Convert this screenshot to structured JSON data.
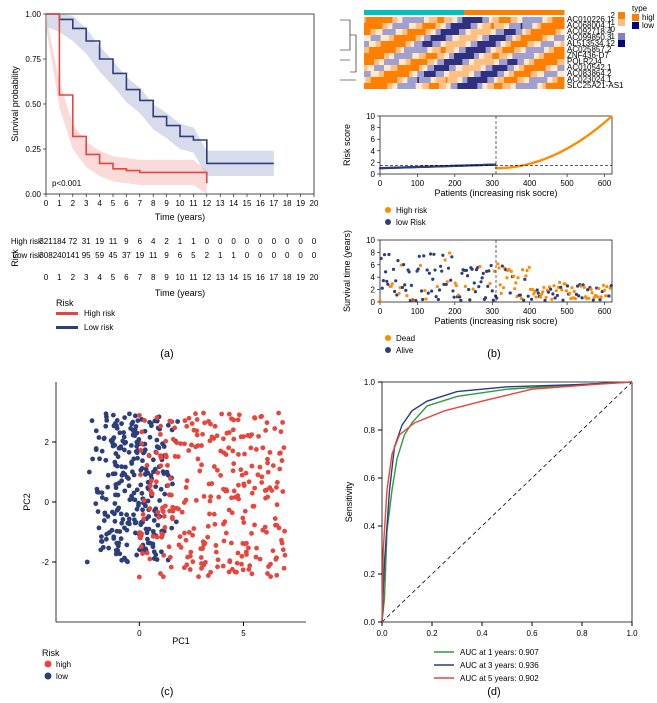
{
  "panel_a": {
    "km": {
      "ylabel": "Survival probability",
      "xlabel": "Time (years)",
      "pval": "p<0.001",
      "xlim": [
        0,
        20
      ],
      "ylim": [
        0,
        1.0
      ],
      "xticks": [
        0,
        1,
        2,
        3,
        4,
        5,
        6,
        7,
        8,
        9,
        10,
        11,
        12,
        13,
        14,
        15,
        16,
        17,
        18,
        19,
        20
      ],
      "yticks": [
        0.0,
        0.25,
        0.5,
        0.75,
        1.0
      ],
      "high_color": "#e8453c",
      "low_color": "#2c3e7c",
      "high_band_color": "#f4a6a0",
      "low_band_color": "#9aa5d0",
      "high_curve": [
        [
          0,
          1.0
        ],
        [
          1,
          0.55
        ],
        [
          2,
          0.32
        ],
        [
          3,
          0.22
        ],
        [
          4,
          0.17
        ],
        [
          5,
          0.14
        ],
        [
          6,
          0.13
        ],
        [
          7,
          0.12
        ],
        [
          8,
          0.12
        ],
        [
          9,
          0.12
        ],
        [
          10,
          0.12
        ],
        [
          11,
          0.12
        ],
        [
          12,
          0.06
        ]
      ],
      "low_curve": [
        [
          0,
          1.0
        ],
        [
          1,
          0.97
        ],
        [
          2,
          0.92
        ],
        [
          3,
          0.85
        ],
        [
          4,
          0.75
        ],
        [
          5,
          0.67
        ],
        [
          6,
          0.58
        ],
        [
          7,
          0.52
        ],
        [
          8,
          0.43
        ],
        [
          9,
          0.38
        ],
        [
          10,
          0.32
        ],
        [
          11,
          0.3
        ],
        [
          12,
          0.17
        ],
        [
          17,
          0.17
        ]
      ]
    },
    "risk_table": {
      "label": "Risk",
      "rows": [
        {
          "name": "High risk",
          "color": "#e8453c",
          "vals": [
            321,
            184,
            72,
            31,
            19,
            11,
            9,
            6,
            4,
            2,
            1,
            1,
            0,
            0,
            0,
            0,
            0,
            0,
            0,
            0,
            0
          ]
        },
        {
          "name": "Low risk",
          "color": "#2c3e7c",
          "vals": [
            308,
            240,
            141,
            95,
            59,
            45,
            37,
            19,
            11,
            9,
            6,
            5,
            2,
            1,
            1,
            0,
            0,
            0,
            0,
            0,
            0
          ]
        }
      ],
      "xlabel": "Time (years)"
    },
    "legend": {
      "title": "Risk",
      "items": [
        {
          "label": "High risk",
          "color": "#e8453c"
        },
        {
          "label": "Low risk",
          "color": "#2c3e7c"
        }
      ]
    },
    "caption": "(a)"
  },
  "panel_b": {
    "heatmap": {
      "genes": [
        "AC010226.1",
        "AC068004.1",
        "AC092718.4",
        "AC099850.3",
        "AL513534.1",
        "AC025857.2",
        "ZNF436-D7",
        "POLR2J4",
        "AC010542.1",
        "AC083864.2",
        "AC023024.1",
        "SLC25A21-AS1"
      ],
      "legend_left": {
        "title": "",
        "vals": [
          2,
          1,
          0,
          -1,
          -2
        ],
        "colors": [
          "#ff7f00",
          "#ffbf80",
          "#ffffff",
          "#8080c0",
          "#000080"
        ]
      },
      "legend_right": {
        "title": "type",
        "items": [
          {
            "label": "high",
            "color": "#ff7f00"
          },
          {
            "label": "low",
            "color": "#000080"
          }
        ]
      },
      "bar_color_high": "#00c0c0",
      "bar_color_low": "#ff7f00"
    },
    "risk_score": {
      "ylabel": "Risk score",
      "xlabel": "Patients (increasing risk socre)",
      "xlim": [
        0,
        620
      ],
      "ylim": [
        0,
        10
      ],
      "xticks": [
        0,
        100,
        200,
        300,
        400,
        500,
        600
      ],
      "yticks": [
        0,
        2,
        4,
        6,
        8,
        10
      ],
      "split": 310,
      "low_color": "#2c3e7c",
      "high_color": "#ff8c00",
      "legend": [
        {
          "label": "High risk",
          "color": "#ff8c00"
        },
        {
          "label": "low Risk",
          "color": "#2c3e7c"
        }
      ]
    },
    "survival_scatter": {
      "ylabel": "Survival time (years)",
      "xlabel": "Patients (increasing risk socre)",
      "xlim": [
        0,
        620
      ],
      "ylim": [
        0,
        10
      ],
      "xticks": [
        0,
        100,
        200,
        300,
        400,
        500,
        600
      ],
      "yticks": [
        0,
        2,
        4,
        6,
        8,
        10
      ],
      "split": 310,
      "dead_color": "#ff8c00",
      "alive_color": "#2c3e7c",
      "legend": [
        {
          "label": "Dead",
          "color": "#ff8c00"
        },
        {
          "label": "Alive",
          "color": "#2c3e7c"
        }
      ]
    },
    "caption": "(b)"
  },
  "panel_c": {
    "xlabel": "PC1",
    "ylabel": "PC2",
    "xlim": [
      -4,
      8
    ],
    "ylim": [
      -4,
      4
    ],
    "xticks": [
      0,
      5
    ],
    "yticks": [
      -2,
      0,
      2
    ],
    "high_color": "#e8453c",
    "low_color": "#2c3e7c",
    "legend": {
      "title": "Risk",
      "items": [
        {
          "label": "high",
          "color": "#e8453c"
        },
        {
          "label": "low",
          "color": "#2c3e7c"
        }
      ]
    },
    "caption": "(c)"
  },
  "panel_d": {
    "xlabel": "",
    "ylabel": "Sensitivity",
    "xlim": [
      0,
      1
    ],
    "ylim": [
      0,
      1
    ],
    "xticks": [
      0.0,
      0.2,
      0.4,
      0.6,
      0.8,
      1.0
    ],
    "yticks": [
      0.0,
      0.2,
      0.4,
      0.6,
      0.8,
      1.0
    ],
    "curves": [
      {
        "label": "AUC at 1 years: 0.907",
        "color": "#2e9b3e",
        "pts": [
          [
            0,
            0
          ],
          [
            0.01,
            0.1
          ],
          [
            0.02,
            0.38
          ],
          [
            0.04,
            0.55
          ],
          [
            0.06,
            0.68
          ],
          [
            0.09,
            0.78
          ],
          [
            0.12,
            0.83
          ],
          [
            0.18,
            0.9
          ],
          [
            0.3,
            0.94
          ],
          [
            0.5,
            0.97
          ],
          [
            0.8,
            0.99
          ],
          [
            1,
            1
          ]
        ]
      },
      {
        "label": "AUC at 3 years: 0.936",
        "color": "#2c3e7c",
        "pts": [
          [
            0,
            0
          ],
          [
            0.01,
            0.25
          ],
          [
            0.03,
            0.55
          ],
          [
            0.05,
            0.73
          ],
          [
            0.08,
            0.82
          ],
          [
            0.12,
            0.88
          ],
          [
            0.18,
            0.92
          ],
          [
            0.3,
            0.96
          ],
          [
            0.5,
            0.98
          ],
          [
            0.8,
            0.99
          ],
          [
            1,
            1
          ]
        ]
      },
      {
        "label": "AUC at 5 years: 0.902",
        "color": "#e8453c",
        "pts": [
          [
            0,
            0
          ],
          [
            0.005,
            0.3
          ],
          [
            0.02,
            0.55
          ],
          [
            0.04,
            0.7
          ],
          [
            0.07,
            0.78
          ],
          [
            0.13,
            0.83
          ],
          [
            0.25,
            0.88
          ],
          [
            0.4,
            0.92
          ],
          [
            0.6,
            0.97
          ],
          [
            0.85,
            0.99
          ],
          [
            1,
            1
          ]
        ]
      }
    ],
    "caption": "(d)"
  }
}
